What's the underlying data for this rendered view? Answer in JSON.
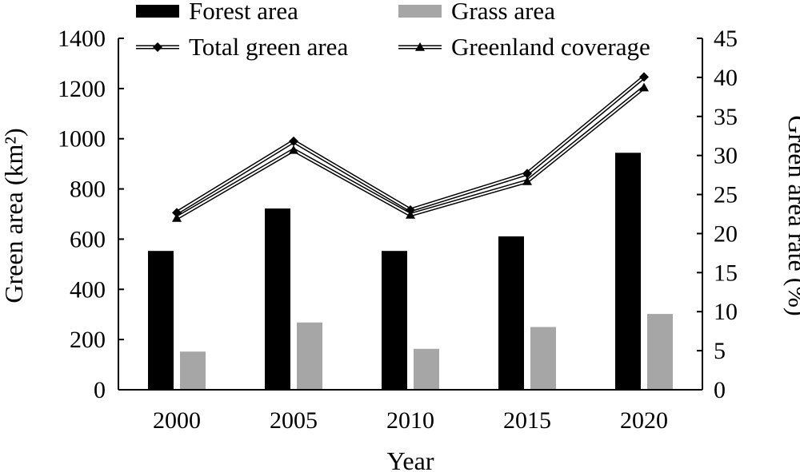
{
  "chart_data": {
    "type": "bar",
    "categories": [
      "2000",
      "2005",
      "2010",
      "2015",
      "2020"
    ],
    "xlabel": "Year",
    "ylabel": "Green area (km²)",
    "ylabel_right": "Green area rate (%)",
    "ylim": [
      0,
      1400
    ],
    "ylim_right": [
      0,
      45
    ],
    "yticks": [
      "0",
      "200",
      "400",
      "600",
      "800",
      "1000",
      "1200",
      "1400"
    ],
    "yticks_right": [
      "0",
      "5",
      "10",
      "15",
      "20",
      "25",
      "30",
      "35",
      "40",
      "45"
    ],
    "grid": false,
    "legend_position": "top",
    "series": [
      {
        "name": "Forest area",
        "kind": "bar",
        "axis": "left",
        "color": "#000000",
        "values": [
          553,
          722,
          553,
          611,
          944
        ]
      },
      {
        "name": "Grass area",
        "kind": "bar",
        "axis": "left",
        "color": "#a6a6a6",
        "values": [
          152,
          268,
          163,
          250,
          302
        ]
      },
      {
        "name": "Total green area",
        "kind": "line",
        "axis": "left",
        "marker": "diamond",
        "values": [
          705,
          990,
          716,
          861,
          1246
        ]
      },
      {
        "name": "Greenland coverage",
        "kind": "line",
        "axis": "right",
        "marker": "triangle",
        "values": [
          22.0,
          30.7,
          22.4,
          26.7,
          38.7
        ]
      }
    ]
  }
}
